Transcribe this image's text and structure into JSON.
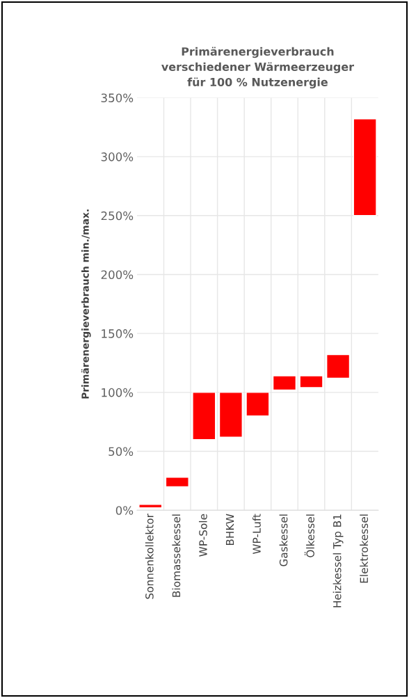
{
  "chart_data": {
    "type": "bar",
    "title": "Primärenergieverbrauch\nverschiedener Wärmeerzeuger\nfür 100 % Nutzenergie",
    "ylabel": "Primärenergieverbrauch min./max.",
    "categories": [
      "Sonnenkollektor",
      "Biomassekessel",
      "WP-Sole",
      "BHKW",
      "WP-Luft",
      "Gaskessel",
      "Ölkessel",
      "Heizkessel Typ B1",
      "Elektrokessel"
    ],
    "base": [
      2,
      20,
      60,
      62,
      80,
      102,
      104,
      112,
      250
    ],
    "values": [
      3,
      8,
      40,
      38,
      20,
      12,
      10,
      20,
      82
    ],
    "color": "#ff0000",
    "ylim": [
      0,
      350
    ],
    "yticks": [
      {
        "value": 0,
        "label": "0%"
      },
      {
        "value": 50,
        "label": "50%"
      },
      {
        "value": 100,
        "label": "100%"
      },
      {
        "value": 150,
        "label": "150%"
      },
      {
        "value": 200,
        "label": "200%"
      },
      {
        "value": 250,
        "label": "250%"
      },
      {
        "value": 300,
        "label": "300%"
      },
      {
        "value": 350,
        "label": "350%"
      }
    ],
    "grid": true
  }
}
